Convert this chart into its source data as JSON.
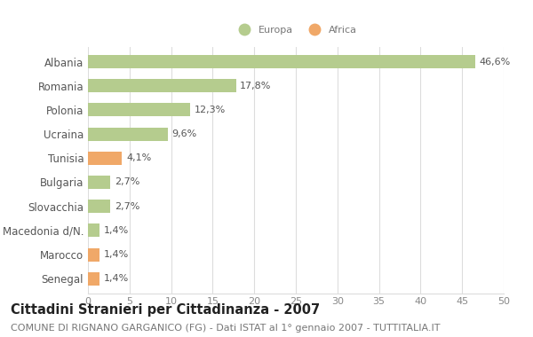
{
  "categories": [
    "Albania",
    "Romania",
    "Polonia",
    "Ucraina",
    "Tunisia",
    "Bulgaria",
    "Slovacchia",
    "Macedonia d/N.",
    "Marocco",
    "Senegal"
  ],
  "values": [
    46.6,
    17.8,
    12.3,
    9.6,
    4.1,
    2.7,
    2.7,
    1.4,
    1.4,
    1.4
  ],
  "labels": [
    "46,6%",
    "17,8%",
    "12,3%",
    "9,6%",
    "4,1%",
    "2,7%",
    "2,7%",
    "1,4%",
    "1,4%",
    "1,4%"
  ],
  "colors": [
    "#b5cc8e",
    "#b5cc8e",
    "#b5cc8e",
    "#b5cc8e",
    "#f0a868",
    "#b5cc8e",
    "#b5cc8e",
    "#b5cc8e",
    "#f0a868",
    "#f0a868"
  ],
  "continent": [
    "Europa",
    "Europa",
    "Europa",
    "Europa",
    "Africa",
    "Europa",
    "Europa",
    "Europa",
    "Africa",
    "Africa"
  ],
  "europa_color": "#b5cc8e",
  "africa_color": "#f0a868",
  "xlim": [
    0,
    50
  ],
  "xticks": [
    0,
    5,
    10,
    15,
    20,
    25,
    30,
    35,
    40,
    45,
    50
  ],
  "title": "Cittadini Stranieri per Cittadinanza - 2007",
  "subtitle": "COMUNE DI RIGNANO GARGANICO (FG) - Dati ISTAT al 1° gennaio 2007 - TUTTITALIA.IT",
  "background_color": "#ffffff",
  "grid_color": "#dddddd",
  "bar_height": 0.55,
  "label_fontsize": 8.0,
  "title_fontsize": 10.5,
  "subtitle_fontsize": 8.0,
  "tick_fontsize": 8.0,
  "ytick_fontsize": 8.5
}
